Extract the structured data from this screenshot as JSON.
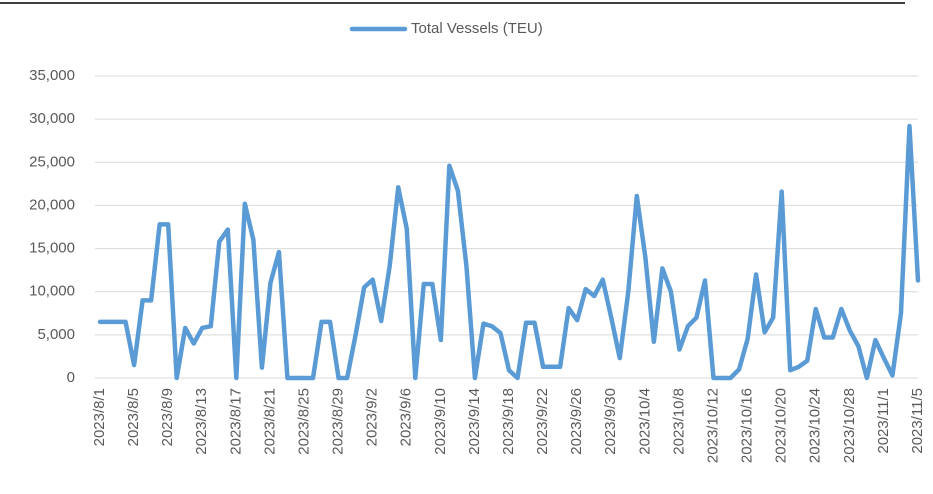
{
  "chart_data": {
    "type": "line",
    "categories": [
      "2023/8/1",
      null,
      null,
      null,
      "2023/8/5",
      null,
      null,
      null,
      "2023/8/9",
      null,
      null,
      null,
      "2023/8/13",
      null,
      null,
      null,
      "2023/8/17",
      null,
      null,
      null,
      "2023/8/21",
      null,
      null,
      null,
      "2023/8/25",
      null,
      null,
      null,
      "2023/8/29",
      null,
      null,
      null,
      "2023/9/2",
      null,
      null,
      null,
      "2023/9/6",
      null,
      null,
      null,
      "2023/9/10",
      null,
      null,
      null,
      "2023/9/14",
      null,
      null,
      null,
      "2023/9/18",
      null,
      null,
      null,
      "2023/9/22",
      null,
      null,
      null,
      "2023/9/26",
      null,
      null,
      null,
      "2023/9/30",
      null,
      null,
      null,
      "2023/10/4",
      null,
      null,
      null,
      "2023/10/8",
      null,
      null,
      null,
      "2023/10/12",
      null,
      null,
      null,
      "2023/10/16",
      null,
      null,
      null,
      "2023/10/20",
      null,
      null,
      null,
      "2023/10/24",
      null,
      null,
      null,
      "2023/10/28",
      null,
      null,
      null,
      "2023/11/1",
      null,
      null,
      null,
      "2023/11/5"
    ],
    "series": [
      {
        "name": "Total Vessels (TEU)",
        "color": "#5b9bd5",
        "values": [
          6500,
          6500,
          6500,
          6500,
          1500,
          9000,
          9000,
          17800,
          17800,
          0,
          5800,
          4000,
          5800,
          6000,
          15800,
          17200,
          0,
          20200,
          16000,
          1200,
          11000,
          14600,
          0,
          0,
          0,
          0,
          6500,
          6500,
          0,
          0,
          5000,
          10500,
          11400,
          6600,
          13000,
          22100,
          17300,
          0,
          10900,
          10900,
          4400,
          24600,
          21700,
          13000,
          0,
          6300,
          6000,
          5200,
          900,
          0,
          6400,
          6400,
          1300,
          1300,
          1300,
          8100,
          6700,
          10300,
          9500,
          11400,
          7000,
          2300,
          10000,
          21100,
          14000,
          4200,
          12700,
          10000,
          3300,
          6000,
          7000,
          11300,
          0,
          0,
          0,
          1000,
          4500,
          12000,
          5300,
          7000,
          21600,
          900,
          1300,
          2000,
          8000,
          4700,
          4700,
          8000,
          5500,
          3700,
          0,
          4400,
          2300,
          300,
          7500,
          29200,
          11300
        ]
      }
    ],
    "ylim": [
      0,
      35000
    ],
    "yticks": [
      0,
      {
        "value": 5000,
        "label": "5,000"
      },
      {
        "value": 10000,
        "label": "10,000"
      },
      {
        "value": 15000,
        "label": "15,000"
      },
      {
        "value": 20000,
        "label": "20,000"
      },
      {
        "value": 25000,
        "label": "25,000"
      },
      {
        "value": 30000,
        "label": "30,000"
      },
      {
        "value": 35000,
        "label": "35,000"
      }
    ],
    "grid": true,
    "legend": "top"
  }
}
